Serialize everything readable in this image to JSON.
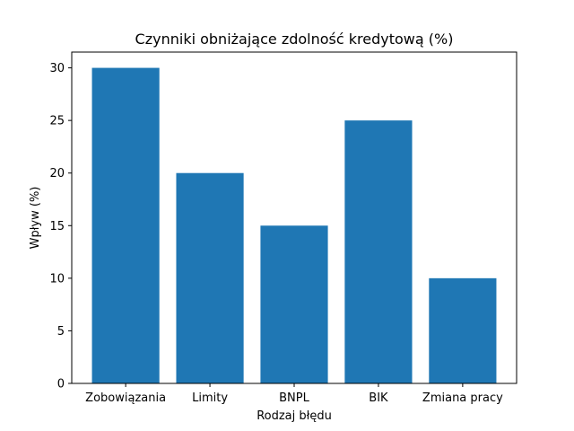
{
  "chart_data": {
    "type": "bar",
    "title": "Czynniki obniżające zdolność kredytową (%)",
    "xlabel": "Rodzaj błędu",
    "ylabel": "Wpływ (%)",
    "categories": [
      "Zobowiązania",
      "Limity",
      "BNPL",
      "BIK",
      "Zmiana pracy"
    ],
    "values": [
      30,
      20,
      15,
      25,
      10
    ],
    "ylim": [
      0,
      31.5
    ],
    "yticks": [
      0,
      5,
      10,
      15,
      20,
      25,
      30
    ],
    "bar_color": "#1f77b4",
    "grid": false,
    "legend": "none"
  }
}
